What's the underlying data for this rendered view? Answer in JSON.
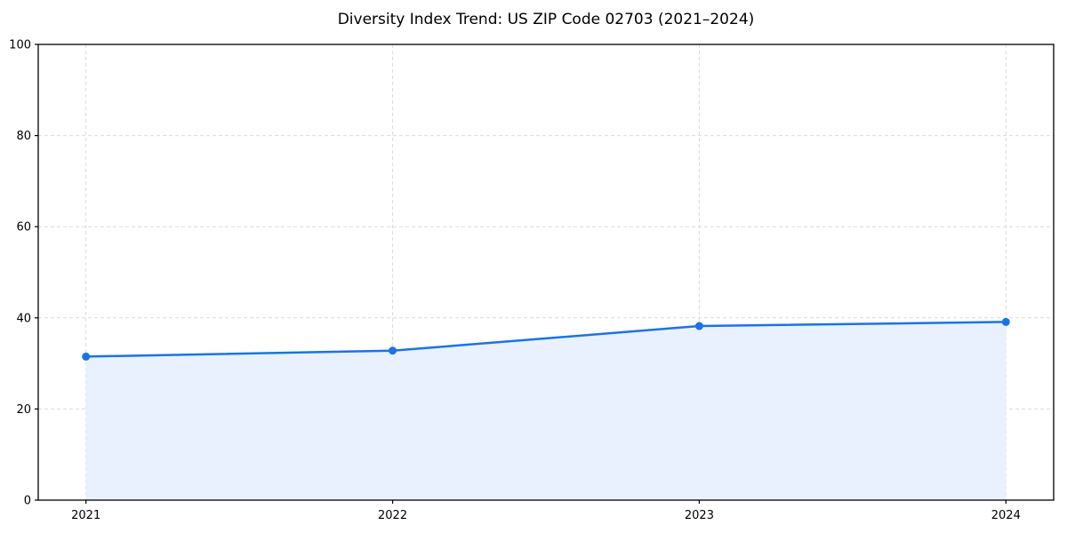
{
  "chart_data": {
    "type": "line",
    "categories": [
      "2021",
      "2022",
      "2023",
      "2024"
    ],
    "series": [
      {
        "name": "Diversity Index",
        "values": [
          31.5,
          32.8,
          38.2,
          39.1
        ]
      }
    ],
    "title": "Diversity Index Trend: US ZIP Code 02703 (2021–2024)",
    "xlabel": "",
    "ylabel": "",
    "ylim": [
      0,
      100
    ],
    "yticks": [
      0,
      20,
      40,
      60,
      80,
      100
    ],
    "grid": true,
    "grid_style": "dashed",
    "legend": "none",
    "area_fill": true,
    "marker": "circle",
    "colors": {
      "line": "#1a73e8",
      "marker": "#1a73e8",
      "fill": "#e8f1fd",
      "grid": "#dcdcdc",
      "axis": "#000000",
      "background": "#ffffff"
    }
  }
}
